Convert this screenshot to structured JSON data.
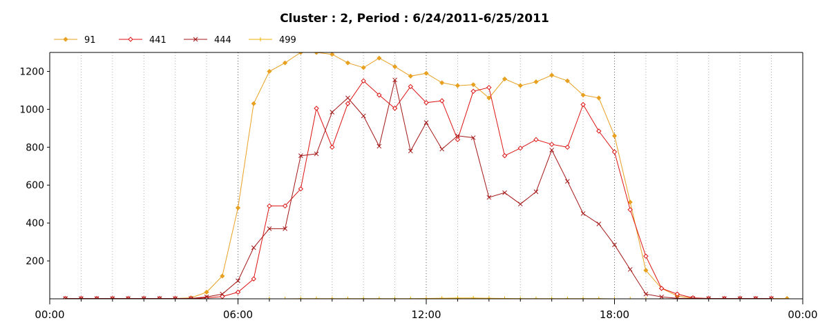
{
  "chart_data": {
    "type": "line",
    "title": "Cluster : 2, Period : 6/24/2011-6/25/2011",
    "xlabel": "",
    "ylabel": "",
    "x_unit": "hours",
    "xlim": [
      0,
      24
    ],
    "ylim": [
      0,
      1300
    ],
    "y_ticks": [
      200,
      400,
      600,
      800,
      1000,
      1200
    ],
    "x_ticks": [
      {
        "value": 0,
        "label": "00:00"
      },
      {
        "value": 6,
        "label": "06:00"
      },
      {
        "value": 12,
        "label": "12:00"
      },
      {
        "value": 18,
        "label": "18:00"
      },
      {
        "value": 24,
        "label": "00:00"
      }
    ],
    "grid": "vertical dotted",
    "legend_position": "top-left",
    "series": [
      {
        "name": "91",
        "color": "#e8a020",
        "marker": "diamond",
        "points": [
          [
            0.5,
            2
          ],
          [
            1,
            2
          ],
          [
            1.5,
            2
          ],
          [
            2,
            2
          ],
          [
            2.5,
            2
          ],
          [
            3,
            2
          ],
          [
            3.5,
            2
          ],
          [
            4,
            2
          ],
          [
            4.5,
            5
          ],
          [
            5,
            35
          ],
          [
            5.5,
            120
          ],
          [
            6,
            480
          ],
          [
            6.5,
            1030
          ],
          [
            7,
            1200
          ],
          [
            7.5,
            1245
          ],
          [
            8,
            1300
          ],
          [
            8.5,
            1300
          ],
          [
            9,
            1290
          ],
          [
            9.5,
            1245
          ],
          [
            10,
            1220
          ],
          [
            10.5,
            1270
          ],
          [
            11,
            1225
          ],
          [
            11.5,
            1175
          ],
          [
            12,
            1190
          ],
          [
            12.5,
            1140
          ],
          [
            13,
            1125
          ],
          [
            13.5,
            1130
          ],
          [
            14,
            1060
          ],
          [
            14.5,
            1160
          ],
          [
            15,
            1125
          ],
          [
            15.5,
            1145
          ],
          [
            16,
            1180
          ],
          [
            16.5,
            1150
          ],
          [
            17,
            1075
          ],
          [
            17.5,
            1060
          ],
          [
            18,
            860
          ],
          [
            18.5,
            510
          ],
          [
            19,
            150
          ],
          [
            19.5,
            55
          ],
          [
            20,
            15
          ],
          [
            20.5,
            3
          ],
          [
            21,
            2
          ],
          [
            21.5,
            2
          ],
          [
            22,
            2
          ],
          [
            22.5,
            2
          ],
          [
            23,
            2
          ],
          [
            23.5,
            2
          ]
        ]
      },
      {
        "name": "441",
        "color": "#dd1111",
        "marker": "diamond-open",
        "points": [
          [
            0.5,
            2
          ],
          [
            1,
            2
          ],
          [
            1.5,
            2
          ],
          [
            2,
            2
          ],
          [
            2.5,
            2
          ],
          [
            3,
            2
          ],
          [
            3.5,
            2
          ],
          [
            4,
            2
          ],
          [
            4.5,
            2
          ],
          [
            5,
            5
          ],
          [
            5.5,
            12
          ],
          [
            6,
            35
          ],
          [
            6.5,
            105
          ],
          [
            7,
            490
          ],
          [
            7.5,
            490
          ],
          [
            8,
            580
          ],
          [
            8.5,
            1005
          ],
          [
            9,
            800
          ],
          [
            9.5,
            1030
          ],
          [
            10,
            1150
          ],
          [
            10.5,
            1075
          ],
          [
            11,
            1005
          ],
          [
            11.5,
            1120
          ],
          [
            12,
            1035
          ],
          [
            12.5,
            1045
          ],
          [
            13,
            840
          ],
          [
            13.5,
            1095
          ],
          [
            14,
            1115
          ],
          [
            14.5,
            755
          ],
          [
            15,
            795
          ],
          [
            15.5,
            840
          ],
          [
            16,
            815
          ],
          [
            16.5,
            800
          ],
          [
            17,
            1025
          ],
          [
            17.5,
            885
          ],
          [
            18,
            775
          ],
          [
            18.5,
            470
          ],
          [
            19,
            225
          ],
          [
            19.5,
            55
          ],
          [
            20,
            25
          ],
          [
            20.5,
            5
          ],
          [
            21,
            2
          ],
          [
            21.5,
            2
          ],
          [
            22,
            2
          ],
          [
            22.5,
            2
          ],
          [
            23,
            2
          ]
        ]
      },
      {
        "name": "444",
        "color": "#a31515",
        "marker": "cross",
        "points": [
          [
            0.5,
            2
          ],
          [
            1,
            2
          ],
          [
            1.5,
            2
          ],
          [
            2,
            2
          ],
          [
            2.5,
            2
          ],
          [
            3,
            2
          ],
          [
            3.5,
            2
          ],
          [
            4,
            2
          ],
          [
            4.5,
            2
          ],
          [
            5,
            10
          ],
          [
            5.5,
            25
          ],
          [
            6,
            95
          ],
          [
            6.5,
            270
          ],
          [
            7,
            370
          ],
          [
            7.5,
            370
          ],
          [
            8,
            755
          ],
          [
            8.5,
            765
          ],
          [
            9,
            985
          ],
          [
            9.5,
            1060
          ],
          [
            10,
            965
          ],
          [
            10.5,
            805
          ],
          [
            11,
            1155
          ],
          [
            11.5,
            780
          ],
          [
            12,
            930
          ],
          [
            12.5,
            790
          ],
          [
            13,
            860
          ],
          [
            13.5,
            850
          ],
          [
            14,
            535
          ],
          [
            14.5,
            560
          ],
          [
            15,
            500
          ],
          [
            15.5,
            565
          ],
          [
            16,
            785
          ],
          [
            16.5,
            620
          ],
          [
            17,
            450
          ],
          [
            17.5,
            395
          ],
          [
            18,
            285
          ],
          [
            18.5,
            155
          ],
          [
            19,
            25
          ],
          [
            19.5,
            10
          ],
          [
            20,
            3
          ],
          [
            20.5,
            2
          ],
          [
            21,
            2
          ],
          [
            21.5,
            2
          ],
          [
            22,
            2
          ],
          [
            22.5,
            2
          ],
          [
            23,
            2
          ]
        ]
      },
      {
        "name": "499",
        "color": "#f0b000",
        "marker": "plus",
        "points": [
          [
            7,
            0
          ],
          [
            7.5,
            0
          ],
          [
            8,
            1
          ],
          [
            8.5,
            1
          ],
          [
            9,
            1
          ],
          [
            9.5,
            1
          ],
          [
            10,
            1
          ],
          [
            10.5,
            1
          ],
          [
            11,
            1
          ],
          [
            11.5,
            1
          ],
          [
            12,
            2
          ],
          [
            12.5,
            3
          ],
          [
            13,
            4
          ],
          [
            13.5,
            4
          ],
          [
            14,
            3
          ],
          [
            14.5,
            2
          ],
          [
            15,
            1
          ],
          [
            15.5,
            1
          ],
          [
            16,
            1
          ],
          [
            16.5,
            1
          ],
          [
            17,
            1
          ],
          [
            17.5,
            1
          ],
          [
            18,
            0
          ],
          [
            18.5,
            0
          ],
          [
            19,
            0
          ]
        ]
      }
    ]
  }
}
